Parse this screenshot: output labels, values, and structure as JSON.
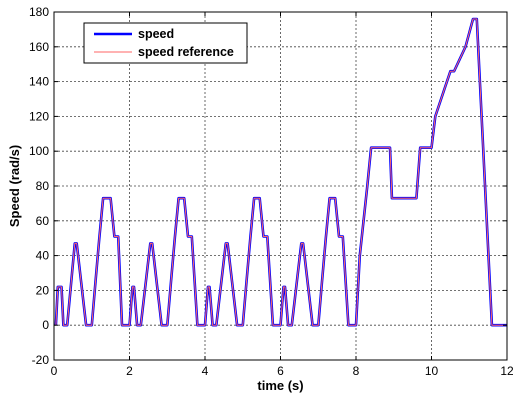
{
  "chart_data": {
    "type": "line",
    "xlabel": "time (s)",
    "ylabel": "Speed (rad/s)",
    "xlim": [
      0,
      12
    ],
    "ylim": [
      -20,
      180
    ],
    "xticks": [
      0,
      2,
      4,
      6,
      8,
      10,
      12
    ],
    "yticks": [
      -20,
      0,
      20,
      40,
      60,
      80,
      100,
      120,
      140,
      160,
      180
    ],
    "grid": true,
    "legend_position": "top-left",
    "series": [
      {
        "name": "speed",
        "color": "#0000ff",
        "x": [
          0.05,
          0.1,
          0.2,
          0.25,
          0.35,
          0.55,
          0.6,
          0.85,
          0.9,
          1.0,
          1.1,
          1.2,
          1.3,
          1.5,
          1.6,
          1.7,
          1.8,
          1.9,
          2.0,
          2.08,
          2.12,
          2.2,
          2.3,
          2.55,
          2.6,
          2.85,
          2.9,
          3.0,
          3.1,
          3.2,
          3.3,
          3.45,
          3.55,
          3.65,
          3.8,
          3.9,
          4.0,
          4.08,
          4.12,
          4.2,
          4.3,
          4.55,
          4.6,
          4.85,
          4.9,
          5.0,
          5.1,
          5.2,
          5.3,
          5.45,
          5.55,
          5.65,
          5.8,
          5.9,
          6.0,
          6.08,
          6.12,
          6.2,
          6.3,
          6.55,
          6.6,
          6.85,
          6.9,
          7.0,
          7.1,
          7.2,
          7.3,
          7.45,
          7.55,
          7.65,
          7.8,
          7.9,
          8.0,
          8.1,
          8.3,
          8.4,
          8.9,
          8.95,
          9.6,
          9.7,
          10.0,
          10.1,
          10.5,
          10.6,
          10.9,
          11.1,
          11.2,
          11.6,
          11.65,
          12.0
        ],
        "y": [
          0,
          22,
          22,
          0,
          0,
          47,
          47,
          0,
          0,
          0,
          25,
          50,
          73,
          73,
          51,
          51,
          0,
          0,
          0,
          22,
          22,
          0,
          0,
          47,
          47,
          0,
          0,
          0,
          25,
          50,
          73,
          73,
          51,
          51,
          0,
          0,
          0,
          22,
          22,
          0,
          0,
          47,
          47,
          0,
          0,
          0,
          25,
          50,
          73,
          73,
          51,
          51,
          0,
          0,
          0,
          22,
          22,
          0,
          0,
          47,
          47,
          0,
          0,
          0,
          25,
          50,
          73,
          73,
          51,
          51,
          0,
          0,
          0,
          40,
          80,
          102,
          102,
          73,
          73,
          102,
          102,
          120,
          146,
          146,
          160,
          176,
          176,
          0,
          0,
          0
        ]
      },
      {
        "name": "speed reference",
        "color": "#ff6666",
        "x": [
          0.05,
          0.1,
          0.2,
          0.25,
          0.35,
          0.55,
          0.6,
          0.85,
          0.9,
          1.0,
          1.1,
          1.2,
          1.3,
          1.5,
          1.6,
          1.7,
          1.8,
          1.9,
          2.0,
          2.08,
          2.12,
          2.2,
          2.3,
          2.55,
          2.6,
          2.85,
          2.9,
          3.0,
          3.1,
          3.2,
          3.3,
          3.45,
          3.55,
          3.65,
          3.8,
          3.9,
          4.0,
          4.08,
          4.12,
          4.2,
          4.3,
          4.55,
          4.6,
          4.85,
          4.9,
          5.0,
          5.1,
          5.2,
          5.3,
          5.45,
          5.55,
          5.65,
          5.8,
          5.9,
          6.0,
          6.08,
          6.12,
          6.2,
          6.3,
          6.55,
          6.6,
          6.85,
          6.9,
          7.0,
          7.1,
          7.2,
          7.3,
          7.45,
          7.55,
          7.65,
          7.8,
          7.9,
          8.0,
          8.1,
          8.3,
          8.4,
          8.9,
          8.95,
          9.6,
          9.7,
          10.0,
          10.1,
          10.5,
          10.6,
          10.9,
          11.1,
          11.2,
          11.6,
          11.65,
          12.0
        ],
        "y": [
          0,
          22,
          22,
          0,
          0,
          47,
          47,
          0,
          0,
          0,
          25,
          50,
          73,
          73,
          51,
          51,
          0,
          0,
          0,
          22,
          22,
          0,
          0,
          47,
          47,
          0,
          0,
          0,
          25,
          50,
          73,
          73,
          51,
          51,
          0,
          0,
          0,
          22,
          22,
          0,
          0,
          47,
          47,
          0,
          0,
          0,
          25,
          50,
          73,
          73,
          51,
          51,
          0,
          0,
          0,
          22,
          22,
          0,
          0,
          47,
          47,
          0,
          0,
          0,
          25,
          50,
          73,
          73,
          51,
          51,
          0,
          0,
          0,
          40,
          80,
          102,
          102,
          73,
          73,
          102,
          102,
          120,
          146,
          146,
          160,
          176,
          176,
          0,
          0,
          0
        ]
      }
    ]
  }
}
